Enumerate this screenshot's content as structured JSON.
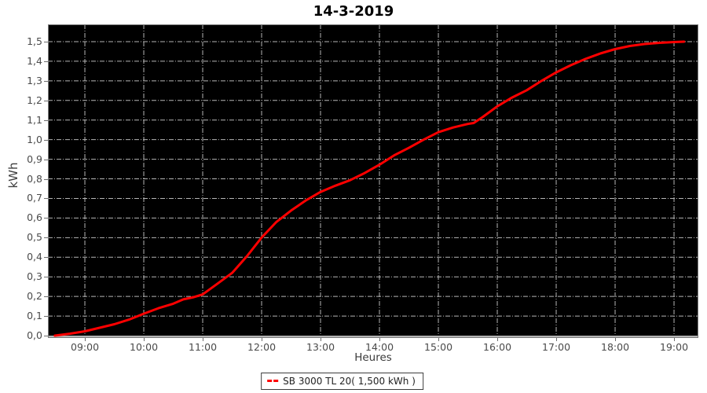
{
  "page": {
    "background": "#ffffff"
  },
  "chart_data": {
    "type": "line",
    "title": "14-3-2019",
    "xlabel": "Heures",
    "ylabel": "kWh",
    "plot_bg": "#000000",
    "grid_color": "#b5b5b5",
    "border_color": "#7d7d7d",
    "axis_line_color": "#b3b3b3",
    "grid": true,
    "ylim": [
      0,
      1.5
    ],
    "xlim_hours": [
      8.373,
      19.413
    ],
    "y_ticks": [
      {
        "v": 0.0,
        "label": "0,0"
      },
      {
        "v": 0.1,
        "label": "0,1"
      },
      {
        "v": 0.2,
        "label": "0,2"
      },
      {
        "v": 0.3,
        "label": "0,3"
      },
      {
        "v": 0.4,
        "label": "0,4"
      },
      {
        "v": 0.5,
        "label": "0,5"
      },
      {
        "v": 0.6,
        "label": "0,6"
      },
      {
        "v": 0.7,
        "label": "0,7"
      },
      {
        "v": 0.8,
        "label": "0,8"
      },
      {
        "v": 0.9,
        "label": "0,9"
      },
      {
        "v": 1.0,
        "label": "1,0"
      },
      {
        "v": 1.1,
        "label": "1,1"
      },
      {
        "v": 1.2,
        "label": "1,2"
      },
      {
        "v": 1.3,
        "label": "1,3"
      },
      {
        "v": 1.4,
        "label": "1,4"
      },
      {
        "v": 1.5,
        "label": "1,5"
      }
    ],
    "x_ticks": [
      {
        "t": 9,
        "label": "09:00"
      },
      {
        "t": 10,
        "label": "10:00"
      },
      {
        "t": 11,
        "label": "11:00"
      },
      {
        "t": 12,
        "label": "12:00"
      },
      {
        "t": 13,
        "label": "13:00"
      },
      {
        "t": 14,
        "label": "14:00"
      },
      {
        "t": 15,
        "label": "15:00"
      },
      {
        "t": 16,
        "label": "16:00"
      },
      {
        "t": 17,
        "label": "17:00"
      },
      {
        "t": 18,
        "label": "18:00"
      },
      {
        "t": 19,
        "label": "19:00"
      }
    ],
    "series": [
      {
        "name": "SB 3000 TL 20( 1,500 kWh )",
        "color": "#fe0000",
        "total_label": "1,500 kWh",
        "x": [
          8.49,
          8.75,
          9.0,
          9.25,
          9.5,
          9.75,
          10.0,
          10.25,
          10.5,
          10.67,
          10.83,
          11.0,
          11.25,
          11.5,
          11.75,
          12.0,
          12.25,
          12.5,
          12.75,
          13.0,
          13.25,
          13.5,
          13.75,
          14.0,
          14.25,
          14.5,
          14.75,
          15.0,
          15.25,
          15.5,
          15.6,
          15.75,
          16.0,
          16.25,
          16.5,
          16.75,
          17.0,
          17.25,
          17.5,
          17.75,
          18.0,
          18.25,
          18.5,
          18.75,
          19.0,
          19.17
        ],
        "y": [
          0.0,
          0.01,
          0.022,
          0.04,
          0.058,
          0.082,
          0.112,
          0.14,
          0.163,
          0.185,
          0.195,
          0.21,
          0.265,
          0.32,
          0.405,
          0.5,
          0.58,
          0.638,
          0.69,
          0.733,
          0.765,
          0.793,
          0.83,
          0.872,
          0.92,
          0.958,
          1.0,
          1.038,
          1.062,
          1.08,
          1.085,
          1.115,
          1.17,
          1.215,
          1.252,
          1.3,
          1.343,
          1.38,
          1.412,
          1.44,
          1.462,
          1.478,
          1.488,
          1.494,
          1.498,
          1.5
        ]
      }
    ]
  },
  "legend": {
    "items": [
      {
        "label": "SB 3000 TL 20( 1,500 kWh )",
        "color": "#fe0000"
      }
    ]
  }
}
